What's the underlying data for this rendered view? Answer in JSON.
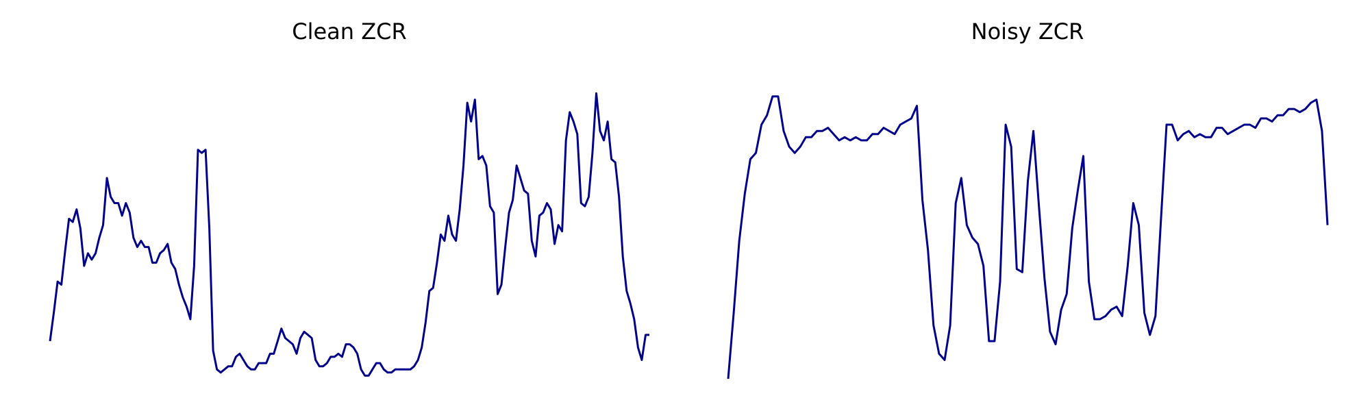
{
  "chart_data": [
    {
      "type": "line",
      "title": "Clean ZCR",
      "xlabel": "",
      "ylabel": "",
      "axes_visible": false,
      "grid": false,
      "line_color": "#00008B",
      "ylim": [
        0,
        1
      ],
      "values": [
        0.12,
        0.21,
        0.31,
        0.3,
        0.41,
        0.51,
        0.5,
        0.54,
        0.48,
        0.36,
        0.4,
        0.38,
        0.4,
        0.45,
        0.49,
        0.64,
        0.58,
        0.56,
        0.56,
        0.52,
        0.56,
        0.53,
        0.45,
        0.42,
        0.44,
        0.42,
        0.42,
        0.37,
        0.37,
        0.4,
        0.41,
        0.43,
        0.37,
        0.35,
        0.3,
        0.26,
        0.23,
        0.19,
        0.36,
        0.73,
        0.72,
        0.73,
        0.48,
        0.09,
        0.03,
        0.02,
        0.03,
        0.04,
        0.04,
        0.07,
        0.08,
        0.06,
        0.04,
        0.03,
        0.03,
        0.05,
        0.05,
        0.05,
        0.08,
        0.08,
        0.12,
        0.16,
        0.13,
        0.12,
        0.11,
        0.08,
        0.13,
        0.15,
        0.14,
        0.13,
        0.06,
        0.04,
        0.04,
        0.05,
        0.07,
        0.07,
        0.08,
        0.07,
        0.11,
        0.11,
        0.1,
        0.08,
        0.03,
        0.01,
        0.01,
        0.03,
        0.05,
        0.05,
        0.03,
        0.02,
        0.02,
        0.03,
        0.03,
        0.03,
        0.03,
        0.03,
        0.04,
        0.06,
        0.1,
        0.18,
        0.28,
        0.29,
        0.37,
        0.46,
        0.44,
        0.52,
        0.46,
        0.44,
        0.54,
        0.68,
        0.88,
        0.82,
        0.89,
        0.7,
        0.71,
        0.68,
        0.55,
        0.53,
        0.27,
        0.3,
        0.42,
        0.53,
        0.57,
        0.68,
        0.64,
        0.6,
        0.59,
        0.44,
        0.39,
        0.52,
        0.53,
        0.56,
        0.54,
        0.43,
        0.49,
        0.47,
        0.76,
        0.85,
        0.82,
        0.78,
        0.56,
        0.55,
        0.58,
        0.72,
        0.91,
        0.79,
        0.76,
        0.82,
        0.7,
        0.69,
        0.58,
        0.39,
        0.28,
        0.24,
        0.19,
        0.1,
        0.06,
        0.14,
        0.14
      ]
    },
    {
      "type": "line",
      "title": "Noisy ZCR",
      "xlabel": "",
      "ylabel": "",
      "axes_visible": false,
      "grid": false,
      "line_color": "#00008B",
      "ylim": [
        0,
        1
      ],
      "values": [
        0.0,
        0.21,
        0.44,
        0.59,
        0.7,
        0.72,
        0.81,
        0.84,
        0.9,
        0.9,
        0.79,
        0.74,
        0.72,
        0.74,
        0.77,
        0.77,
        0.79,
        0.79,
        0.8,
        0.78,
        0.76,
        0.77,
        0.76,
        0.77,
        0.76,
        0.76,
        0.78,
        0.78,
        0.8,
        0.79,
        0.78,
        0.81,
        0.82,
        0.83,
        0.87,
        0.57,
        0.41,
        0.17,
        0.08,
        0.06,
        0.17,
        0.56,
        0.64,
        0.49,
        0.45,
        0.43,
        0.36,
        0.12,
        0.12,
        0.31,
        0.81,
        0.74,
        0.35,
        0.34,
        0.63,
        0.79,
        0.55,
        0.32,
        0.15,
        0.11,
        0.22,
        0.27,
        0.48,
        0.6,
        0.71,
        0.31,
        0.19,
        0.19,
        0.2,
        0.22,
        0.23,
        0.2,
        0.36,
        0.56,
        0.49,
        0.21,
        0.14,
        0.2,
        0.51,
        0.81,
        0.81,
        0.76,
        0.78,
        0.79,
        0.77,
        0.78,
        0.77,
        0.77,
        0.8,
        0.8,
        0.78,
        0.79,
        0.8,
        0.81,
        0.81,
        0.8,
        0.83,
        0.83,
        0.82,
        0.84,
        0.84,
        0.86,
        0.86,
        0.85,
        0.86,
        0.88,
        0.89,
        0.79,
        0.49
      ]
    }
  ]
}
